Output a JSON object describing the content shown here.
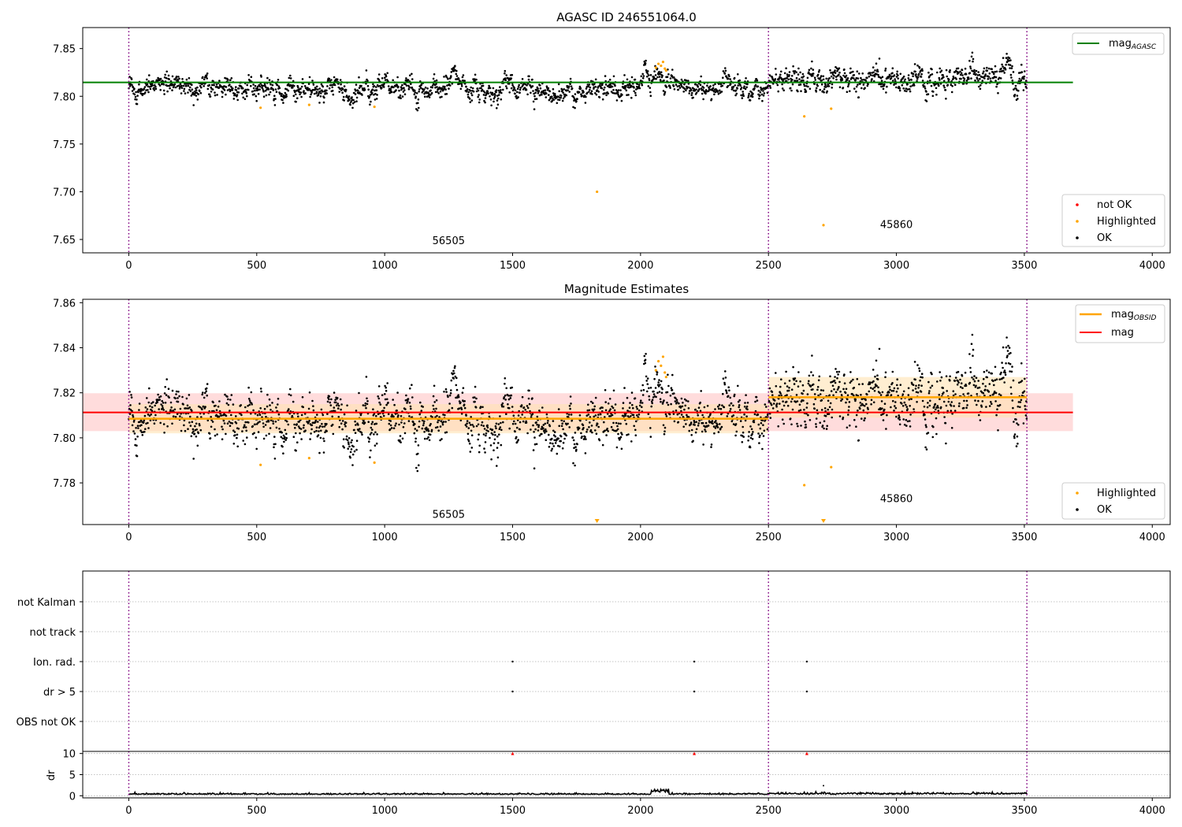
{
  "figure": {
    "title": "AGASC ID 246551064.0",
    "panel2_title": "Magnitude Estimates"
  },
  "colors": {
    "ok": "#000000",
    "highlighted": "#ffa500",
    "not_ok": "#ff0000",
    "mag_agasc_line": "#008000",
    "mag_line": "#ff0000",
    "mag_obsid_line": "#ffa500",
    "obs_boundary": "#800080",
    "mag_band": "#ffc0c0",
    "obsid_band": "#ffe2b3"
  },
  "chart_data": [
    {
      "type": "scatter",
      "panel": "magnitude-vs-time",
      "title": "AGASC ID 246551064.0",
      "xlim": [
        -180,
        4070
      ],
      "ylim": [
        7.636,
        7.872
      ],
      "xticks": [
        0,
        500,
        1000,
        1500,
        2000,
        2500,
        3000,
        3500,
        4000
      ],
      "yticks": [
        7.65,
        7.7,
        7.75,
        7.8,
        7.85
      ],
      "vlines": [
        0,
        2500,
        3510
      ],
      "obsid_labels": [
        {
          "text": "56505",
          "x": 1250,
          "y": 7.645
        },
        {
          "text": "45860",
          "x": 3000,
          "y": 7.662
        }
      ],
      "hline": {
        "name": "mag",
        "sub": "AGASC",
        "y": 7.8145,
        "x": [
          -180,
          3690
        ]
      },
      "ok_segments": [
        {
          "x": [
            0,
            2500
          ],
          "mean": 7.8085,
          "noise": 0.0065
        },
        {
          "x": [
            2500,
            3510
          ],
          "mean": 7.818,
          "noise": 0.0085
        }
      ],
      "ok_bump": {
        "x": [
          2040,
          2110
        ],
        "mean": 7.822
      },
      "highlighted": [
        [
          515,
          7.788
        ],
        [
          705,
          7.791
        ],
        [
          960,
          7.789
        ],
        [
          1830,
          7.7
        ],
        [
          2060,
          7.83
        ],
        [
          2070,
          7.834
        ],
        [
          2080,
          7.832
        ],
        [
          2088,
          7.836
        ],
        [
          2095,
          7.829
        ],
        [
          2100,
          7.827
        ],
        [
          2640,
          7.779
        ],
        [
          2715,
          7.665
        ],
        [
          2745,
          7.787
        ]
      ],
      "not_ok": [],
      "legends": [
        {
          "position": "upper-right",
          "entries": [
            {
              "label": "mag",
              "sub": "AGASC"
            }
          ]
        },
        {
          "position": "lower-right",
          "entries": [
            "not OK",
            "Highlighted",
            "OK"
          ]
        }
      ]
    },
    {
      "type": "scatter",
      "panel": "magnitude-estimates",
      "title": "Magnitude Estimates",
      "xlim": [
        -180,
        4070
      ],
      "ylim": [
        7.7615,
        7.8615
      ],
      "xticks": [
        0,
        500,
        1000,
        1500,
        2000,
        2500,
        3000,
        3500,
        4000
      ],
      "yticks": [
        7.78,
        7.8,
        7.82,
        7.84,
        7.86
      ],
      "vlines": [
        0,
        2500,
        3510
      ],
      "obsid_labels": [
        {
          "text": "56505",
          "x": 1250,
          "y": 7.7645
        },
        {
          "text": "45860",
          "x": 3000,
          "y": 7.7715
        }
      ],
      "mag": {
        "y": 7.8113,
        "band": [
          7.803,
          7.8198
        ],
        "x": [
          -180,
          3690
        ]
      },
      "mag_obsid": [
        {
          "x": [
            0,
            2500
          ],
          "y": 7.8085,
          "band": [
            7.802,
            7.815
          ]
        },
        {
          "x": [
            2500,
            3510
          ],
          "y": 7.818,
          "band": [
            7.809,
            7.827
          ]
        }
      ],
      "highlighted_markers_below_axis": [
        1830,
        2715
      ],
      "legends": [
        {
          "position": "upper-right",
          "entries": [
            {
              "label": "mag",
              "sub": "OBSID"
            },
            {
              "label": "mag"
            }
          ]
        },
        {
          "position": "lower-right",
          "entries": [
            "Highlighted",
            "OK"
          ]
        }
      ]
    },
    {
      "type": "scatter",
      "panel": "flags",
      "categories": [
        "not Kalman",
        "not track",
        "Ion. rad.",
        "dr > 5",
        "OBS not OK"
      ],
      "xlim": [
        -180,
        4070
      ],
      "vlines": [
        0,
        2500,
        3510
      ],
      "points": [
        {
          "category": "Ion. rad.",
          "x": [
            1500,
            2210,
            2650
          ]
        },
        {
          "category": "dr > 5",
          "x": [
            1500,
            2210,
            2650
          ]
        }
      ]
    },
    {
      "type": "line",
      "panel": "dr-vs-time",
      "ylabel": "dr",
      "ylim": [
        -0.5,
        10.5
      ],
      "yticks": [
        0,
        5,
        10
      ],
      "xticks": [
        0,
        500,
        1000,
        1500,
        2000,
        2500,
        3000,
        3500,
        4000
      ],
      "vlines": [
        0,
        2500,
        3510
      ],
      "outliers": [
        [
          1500,
          10
        ],
        [
          2210,
          10
        ],
        [
          2650,
          10
        ]
      ],
      "base_level": 0.3
    }
  ]
}
